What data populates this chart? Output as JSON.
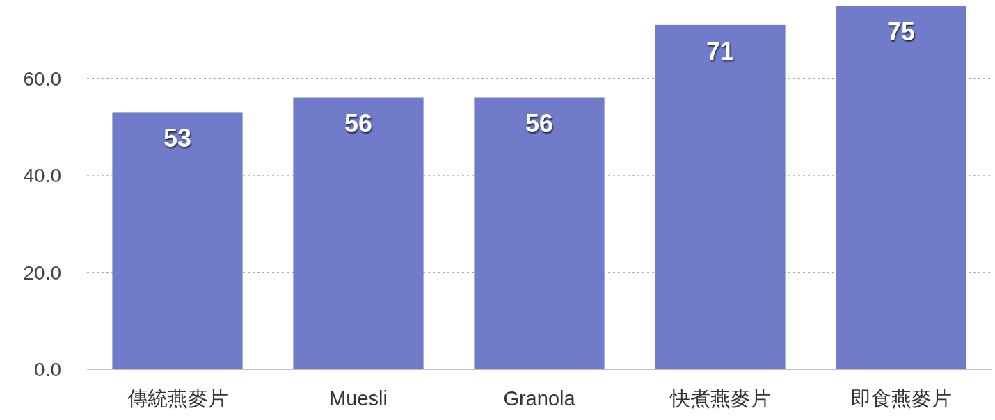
{
  "chart_data": {
    "type": "bar",
    "categories": [
      "傳統燕麥片",
      "Muesli",
      "Granola",
      "快煮燕麥片",
      "即食燕麥片"
    ],
    "values": [
      53,
      56,
      56,
      71,
      75
    ],
    "color": "#707cc9",
    "ylim": [
      0,
      75
    ],
    "yticks": [
      {
        "value": 0,
        "label": "0.0"
      },
      {
        "value": 20,
        "label": "20.0"
      },
      {
        "value": 40,
        "label": "40.0"
      },
      {
        "value": 60,
        "label": "60.0"
      }
    ],
    "grid": "y",
    "data_labels": true
  }
}
